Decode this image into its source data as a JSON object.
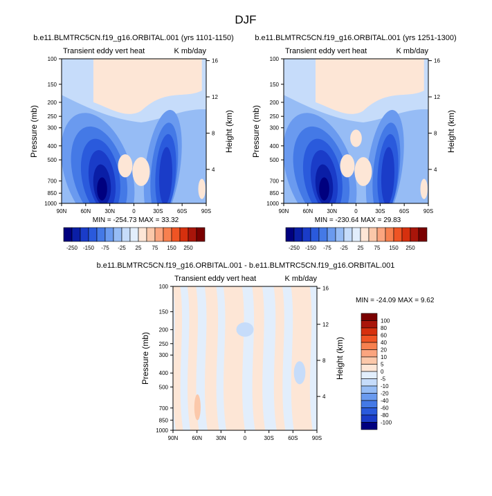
{
  "figure": {
    "title": "DJF"
  },
  "colors": {
    "levels_top": [
      "#00007f",
      "#0a1ea6",
      "#1a3cc8",
      "#2a5adc",
      "#4479e6",
      "#6a9aef",
      "#96bcf5",
      "#c6dcfa",
      "#e2eefc",
      "#fde6d6",
      "#fbc8aa",
      "#fba57f",
      "#f7804f",
      "#ef5424",
      "#d6300e",
      "#a9150a",
      "#7a0000"
    ],
    "levels_diff": [
      "#00007f",
      "#1a3cc8",
      "#2a5adc",
      "#4479e6",
      "#6a9aef",
      "#96bcf5",
      "#c6dcfa",
      "#e2eefc",
      "#fde6d6",
      "#fbc8aa",
      "#fba57f",
      "#f7804f",
      "#ef5424",
      "#d6300e",
      "#a9150a",
      "#7a0000"
    ]
  },
  "chart_data": [
    {
      "type": "heatmap",
      "title": "b.e11.BLMTRC5CN.f19_g16.ORBITAL.001 (yrs 1101-1150)",
      "left_string": "Transient eddy vert heat",
      "right_string": "K mb/day",
      "xlabel": "",
      "ylabel": "Pressure (mb)",
      "ylabel_right": "Height (km)",
      "x_ticks": [
        "90N",
        "60N",
        "30N",
        "0",
        "30S",
        "60S",
        "90S"
      ],
      "y_ticks": [
        "100",
        "150",
        "200",
        "250",
        "300",
        "400",
        "500",
        "700",
        "850",
        "1000"
      ],
      "height_ticks": [
        "4",
        "8",
        "12",
        "16"
      ],
      "min_max": "MIN = -254.73   MAX =  33.32",
      "colorbar_labels": [
        "-250",
        "-150",
        "-75",
        "-25",
        "25",
        "75",
        "150",
        "250"
      ]
    },
    {
      "type": "heatmap",
      "title": "b.e11.BLMTRC5CN.f19_g16.ORBITAL.001 (yrs 1251-1300)",
      "left_string": "Transient eddy vert heat",
      "right_string": "K mb/day",
      "xlabel": "",
      "ylabel": "Pressure (mb)",
      "ylabel_right": "Height (km)",
      "x_ticks": [
        "90N",
        "60N",
        "30N",
        "0",
        "30S",
        "60S",
        "90S"
      ],
      "y_ticks": [
        "100",
        "150",
        "200",
        "250",
        "300",
        "400",
        "500",
        "700",
        "850",
        "1000"
      ],
      "height_ticks": [
        "4",
        "8",
        "12",
        "16"
      ],
      "min_max": "MIN = -230.64   MAX =  29.83",
      "colorbar_labels": [
        "-250",
        "-150",
        "-75",
        "-25",
        "25",
        "75",
        "150",
        "250"
      ]
    },
    {
      "type": "heatmap",
      "title": "b.e11.BLMTRC5CN.f19_g16.ORBITAL.001 - b.e11.BLMTRC5CN.f19_g16.ORBITAL.001",
      "left_string": "Transient eddy vert heat",
      "right_string": "K mb/day",
      "xlabel": "",
      "ylabel": "Pressure (mb)",
      "ylabel_right": "Height (km)",
      "x_ticks": [
        "90N",
        "60N",
        "30N",
        "0",
        "30S",
        "60S",
        "90S"
      ],
      "y_ticks": [
        "100",
        "150",
        "200",
        "250",
        "300",
        "400",
        "500",
        "700",
        "850",
        "1000"
      ],
      "height_ticks": [
        "4",
        "8",
        "12",
        "16"
      ],
      "min_max": "MIN = -24.09   MAX =    9.62",
      "colorbar_labels": [
        "100",
        "80",
        "60",
        "40",
        "20",
        "10",
        "5",
        "0",
        "-5",
        "-10",
        "-20",
        "-40",
        "-60",
        "-80",
        "-100"
      ]
    }
  ]
}
